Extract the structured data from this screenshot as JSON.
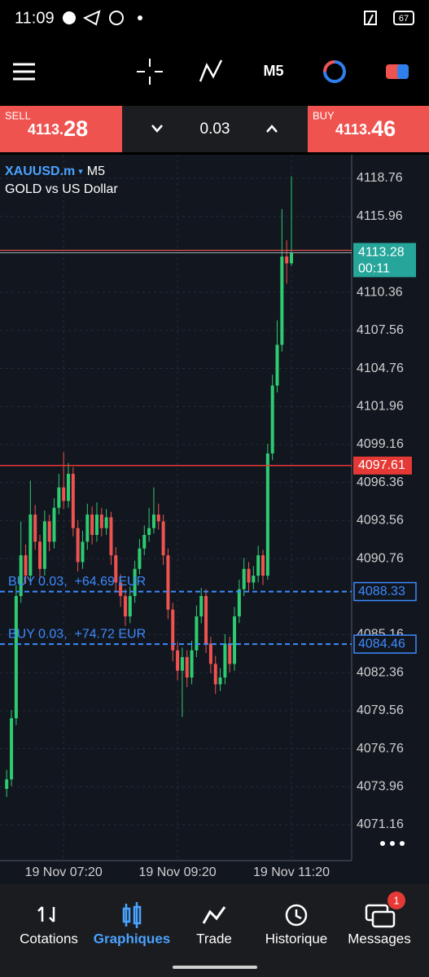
{
  "status_bar": {
    "time": "11:09",
    "battery": "67"
  },
  "toolbar": {
    "timeframe": "M5"
  },
  "trade_panel": {
    "sell_label": "SELL",
    "sell_price": {
      "head": "4113.",
      "tail": "28"
    },
    "volume": "0.03",
    "buy_label": "BUY",
    "buy_price": {
      "head": "4113.",
      "tail": "46"
    }
  },
  "chart_data": {
    "type": "candlestick",
    "title": "XAUUSD.m",
    "timeframe": "M5",
    "subtitle": "GOLD vs US Dollar",
    "categories": [
      null,
      null,
      null,
      null,
      null,
      null,
      null,
      null,
      null,
      null,
      null,
      null,
      "19 Nov 07:20",
      null,
      null,
      null,
      null,
      null,
      null,
      null,
      null,
      null,
      null,
      null,
      null,
      null,
      null,
      null,
      null,
      null,
      null,
      null,
      null,
      null,
      null,
      null,
      "19 Nov 09:20",
      null,
      null,
      null,
      null,
      null,
      null,
      null,
      null,
      null,
      null,
      null,
      null,
      null,
      null,
      null,
      null,
      null,
      null,
      null,
      null,
      null,
      null,
      null,
      "19 Nov 11:20"
    ],
    "open": [
      4073.8,
      4074.5,
      4079,
      4088,
      4091,
      4089.5,
      4094,
      4092,
      4090,
      4093.5,
      4092,
      4094.5,
      4096,
      4095,
      4097,
      4093,
      4090.5,
      4092,
      4094,
      4092.5,
      4094,
      4093,
      4093.8,
      4091,
      4089,
      4088,
      4086.5,
      4088,
      4090,
      4091.5,
      4092.5,
      4093,
      4094,
      4093.5,
      4091,
      4087,
      4084,
      4082.5,
      4083.5,
      4082,
      4084,
      4086.5,
      4088,
      4084.5,
      4083,
      4081.5,
      4082,
      4084.5,
      4083,
      4086.5,
      4088.5,
      4090,
      4089,
      4089.5,
      4091,
      4089.5,
      4098.5,
      4103.5,
      4106.5,
      4113,
      4112.5
    ],
    "high": [
      4075.2,
      4079.6,
      4088.8,
      4093.5,
      4091.8,
      4096.5,
      4094.7,
      4092.5,
      4094.3,
      4094,
      4095.2,
      4097,
      4098.6,
      4097.8,
      4097.5,
      4093.6,
      4092.8,
      4094.8,
      4094.6,
      4094.9,
      4094.5,
      4094.4,
      4094.2,
      4091.6,
      4089.6,
      4088.5,
      4088.7,
      4090.6,
      4092.2,
      4093.2,
      4094.5,
      4096,
      4094.8,
      4094,
      4091.5,
      4087.5,
      4084.6,
      4084.2,
      4084,
      4084.7,
      4087.3,
      4088.6,
      4088.5,
      4085,
      4083.6,
      4082.7,
      4085.2,
      4085,
      4087.2,
      4089.2,
      4090.8,
      4090.5,
      4090.2,
      4091.7,
      4091.4,
      4099.2,
      4104.3,
      4108.3,
      4116.5,
      4114.2,
      4118.9
    ],
    "low": [
      4073.2,
      4074,
      4078.5,
      4087.5,
      4088.9,
      4089,
      4091.4,
      4089.4,
      4089.5,
      4091.3,
      4091.5,
      4094,
      4094.4,
      4094.5,
      4092.4,
      4089.8,
      4090,
      4091.4,
      4091.8,
      4092,
      4092.4,
      4092.5,
      4090.3,
      4088.3,
      4087.2,
      4085.8,
      4086,
      4087.5,
      4089.6,
      4091,
      4092,
      4092.6,
      4092.9,
      4090.3,
      4086.3,
      4083.2,
      4081.8,
      4079.1,
      4081.3,
      4081.5,
      4083.5,
      4086,
      4083.8,
      4082.3,
      4080.8,
      4081,
      4081.5,
      4082.4,
      4082.5,
      4086,
      4088,
      4088.3,
      4088.5,
      4089,
      4088.8,
      4089.2,
      4098,
      4103,
      4106,
      4111,
      4112.3
    ],
    "close": [
      4074.5,
      4079,
      4088,
      4091,
      4089.5,
      4094,
      4092,
      4090,
      4093.5,
      4092,
      4094.5,
      4096,
      4095,
      4097,
      4093,
      4090.5,
      4092,
      4094,
      4092.5,
      4094,
      4093,
      4093.8,
      4091,
      4089,
      4088,
      4086.5,
      4088,
      4090,
      4091.5,
      4092.5,
      4093,
      4094,
      4093.5,
      4091,
      4087,
      4084,
      4082.5,
      4083.5,
      4082,
      4084,
      4086.5,
      4088,
      4084.5,
      4083,
      4081.5,
      4082,
      4084.5,
      4083,
      4086.5,
      4088.5,
      4090,
      4089,
      4089.5,
      4091,
      4089.5,
      4098.5,
      4103.5,
      4106.5,
      4113,
      4112.5,
      4113.28
    ],
    "up_color": "#2ecc71",
    "down_color": "#ef5350",
    "ylim": [
      4068.52,
      4120.5
    ],
    "yticks": [
      4118.76,
      4115.96,
      4110.36,
      4107.56,
      4104.76,
      4101.96,
      4099.16,
      4096.36,
      4093.56,
      4090.76,
      4085.16,
      4082.36,
      4079.56,
      4076.76,
      4073.96,
      4071.16
    ],
    "grid": true,
    "bid": 4113.28,
    "ask": 4113.46,
    "countdown": "00:11",
    "levels": [
      {
        "value": 4097.61,
        "color": "#e53935"
      }
    ],
    "positions": [
      {
        "value": 4088.33,
        "label": "BUY 0.03,  +64.69 EUR"
      },
      {
        "value": 4084.46,
        "label": "BUY 0.03,  +74.72 EUR"
      }
    ],
    "position_color": "#3d8bfd"
  },
  "bottom_nav": {
    "items": [
      "Cotations",
      "Graphiques",
      "Trade",
      "Historique",
      "Messages"
    ],
    "badge": "1"
  }
}
